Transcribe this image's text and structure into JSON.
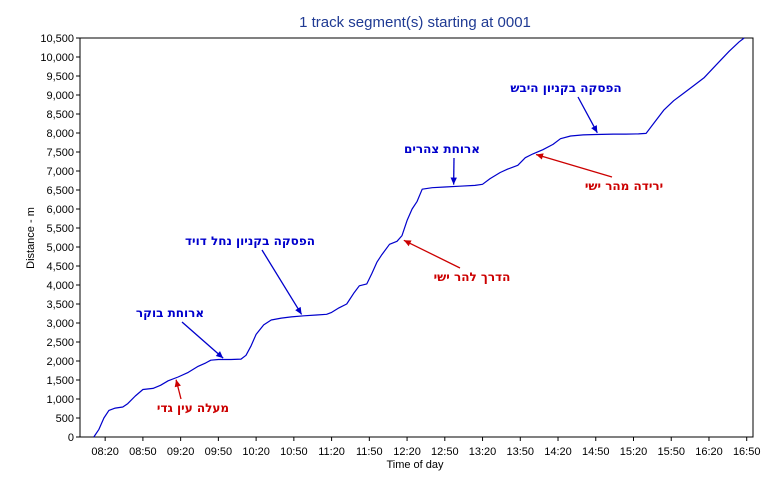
{
  "chart_data": {
    "type": "line",
    "title": "1 track segment(s) starting at 0001",
    "xlabel": "Time of day",
    "ylabel": "Distance - m",
    "x_ticks": [
      "08:20",
      "08:50",
      "09:20",
      "09:50",
      "10:20",
      "10:50",
      "11:20",
      "11:50",
      "12:20",
      "12:50",
      "13:20",
      "13:50",
      "14:20",
      "14:50",
      "15:20",
      "15:50",
      "16:20",
      "16:50"
    ],
    "y_ticks": [
      "0",
      "500",
      "1,000",
      "1,500",
      "2,000",
      "2,500",
      "3,000",
      "3,500",
      "4,000",
      "4,500",
      "5,000",
      "5,500",
      "6,000",
      "6,500",
      "7,000",
      "7,500",
      "8,000",
      "8,500",
      "9,000",
      "9,500",
      "10,000",
      "10,500"
    ],
    "xlim_minutes": [
      480,
      1015
    ],
    "ylim": [
      0,
      10500
    ],
    "grid": false,
    "series": [
      {
        "color": "#0000cc",
        "points": [
          [
            491,
            0
          ],
          [
            495,
            200
          ],
          [
            499,
            500
          ],
          [
            503,
            700
          ],
          [
            508,
            760
          ],
          [
            514,
            790
          ],
          [
            518,
            880
          ],
          [
            524,
            1080
          ],
          [
            530,
            1250
          ],
          [
            538,
            1280
          ],
          [
            544,
            1360
          ],
          [
            550,
            1480
          ],
          [
            558,
            1580
          ],
          [
            566,
            1700
          ],
          [
            574,
            1860
          ],
          [
            580,
            1950
          ],
          [
            584,
            2020
          ],
          [
            590,
            2040
          ],
          [
            600,
            2040
          ],
          [
            608,
            2050
          ],
          [
            612,
            2150
          ],
          [
            616,
            2400
          ],
          [
            620,
            2700
          ],
          [
            626,
            2950
          ],
          [
            632,
            3080
          ],
          [
            640,
            3130
          ],
          [
            648,
            3160
          ],
          [
            658,
            3190
          ],
          [
            668,
            3210
          ],
          [
            676,
            3230
          ],
          [
            680,
            3280
          ],
          [
            686,
            3400
          ],
          [
            692,
            3500
          ],
          [
            698,
            3800
          ],
          [
            702,
            3980
          ],
          [
            708,
            4030
          ],
          [
            712,
            4300
          ],
          [
            716,
            4600
          ],
          [
            720,
            4800
          ],
          [
            726,
            5070
          ],
          [
            732,
            5150
          ],
          [
            736,
            5300
          ],
          [
            740,
            5700
          ],
          [
            744,
            6000
          ],
          [
            748,
            6200
          ],
          [
            752,
            6520
          ],
          [
            760,
            6560
          ],
          [
            770,
            6580
          ],
          [
            782,
            6600
          ],
          [
            794,
            6620
          ],
          [
            800,
            6650
          ],
          [
            806,
            6800
          ],
          [
            814,
            6960
          ],
          [
            820,
            7050
          ],
          [
            828,
            7150
          ],
          [
            834,
            7350
          ],
          [
            840,
            7450
          ],
          [
            848,
            7560
          ],
          [
            856,
            7700
          ],
          [
            862,
            7850
          ],
          [
            870,
            7920
          ],
          [
            880,
            7950
          ],
          [
            890,
            7960
          ],
          [
            904,
            7970
          ],
          [
            914,
            7970
          ],
          [
            924,
            7975
          ],
          [
            930,
            7990
          ],
          [
            936,
            8250
          ],
          [
            944,
            8600
          ],
          [
            952,
            8850
          ],
          [
            960,
            9050
          ],
          [
            968,
            9250
          ],
          [
            976,
            9450
          ],
          [
            986,
            9800
          ],
          [
            996,
            10150
          ],
          [
            1004,
            10400
          ],
          [
            1008,
            10500
          ]
        ]
      }
    ],
    "annotations": [
      {
        "text": "ארוחת בוקר",
        "color": "#0000cc",
        "point": [
          595,
          2040
        ]
      },
      {
        "text": "מעלה עין גדי",
        "color": "#cc0000",
        "point": [
          556,
          1560
        ]
      },
      {
        "text": "הפסקה בקניון נחל דויד",
        "color": "#0000cc",
        "point": [
          657,
          3180
        ]
      },
      {
        "text": "הדרך להר ישי",
        "color": "#cc0000",
        "point": [
          736,
          5200
        ]
      },
      {
        "text": "ארוחת צהרים",
        "color": "#0000cc",
        "point": [
          777,
          6590
        ]
      },
      {
        "text": "ירידה מהר ישי",
        "color": "#cc0000",
        "point": [
          841,
          7450
        ]
      },
      {
        "text": "הפסקה בקניון היבש",
        "color": "#0000cc",
        "point": [
          892,
          7960
        ]
      }
    ]
  }
}
